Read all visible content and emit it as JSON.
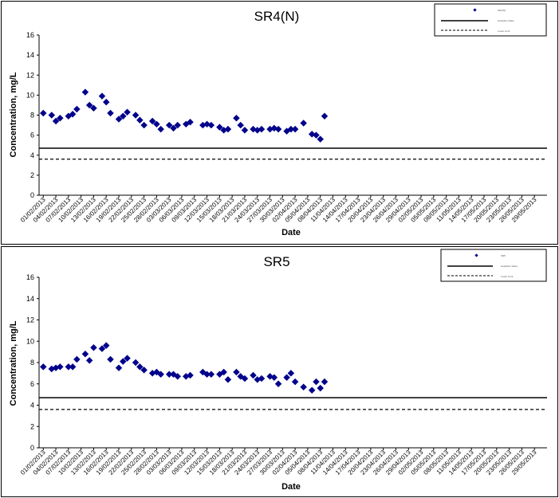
{
  "chart_data": [
    {
      "type": "scatter",
      "title": "SR4(N)",
      "xlabel": "Date",
      "ylabel": "Concentration, mg/L",
      "ylim": [
        0,
        16
      ],
      "yticks": [
        0,
        2,
        4,
        6,
        8,
        10,
        12,
        14,
        16
      ],
      "xlim": [
        "31/01/2013",
        "01/06/2013"
      ],
      "grid": false,
      "legend_position": "top-right",
      "marker_color": "#00008b",
      "tick_labels": [
        "01/02/2013",
        "04/02/2013",
        "07/02/2013",
        "10/02/2013",
        "13/02/2013",
        "16/02/2013",
        "19/02/2013",
        "22/02/2013",
        "25/02/2013",
        "28/02/2013",
        "03/03/2013",
        "06/03/2013",
        "09/03/2013",
        "12/03/2013",
        "15/03/2013",
        "18/03/2013",
        "21/03/2013",
        "24/03/2013",
        "27/03/2013",
        "30/03/2013",
        "02/04/2013",
        "05/04/2013",
        "08/04/2013",
        "11/04/2013",
        "14/04/2013",
        "17/04/2013",
        "20/04/2013",
        "23/04/2013",
        "26/04/2013",
        "29/04/2013",
        "02/05/2013",
        "05/05/2013",
        "08/05/2013",
        "11/05/2013",
        "14/05/2013",
        "17/05/2013",
        "20/05/2013",
        "23/05/2013",
        "26/05/2013",
        "29/05/2013"
      ],
      "legend": [
        "SR4(N)",
        "Guideline Value",
        "Lower Limit"
      ],
      "series": [
        {
          "name": "SR4(N)",
          "kind": "markers",
          "points": [
            [
              "01/02/2013",
              8.2
            ],
            [
              "03/02/2013",
              8.0
            ],
            [
              "04/02/2013",
              7.4
            ],
            [
              "05/02/2013",
              7.7
            ],
            [
              "07/02/2013",
              7.9
            ],
            [
              "08/02/2013",
              8.1
            ],
            [
              "09/02/2013",
              8.6
            ],
            [
              "11/02/2013",
              10.3
            ],
            [
              "12/02/2013",
              9.0
            ],
            [
              "13/02/2013",
              8.7
            ],
            [
              "15/02/2013",
              9.9
            ],
            [
              "16/02/2013",
              9.3
            ],
            [
              "17/02/2013",
              8.2
            ],
            [
              "19/02/2013",
              7.6
            ],
            [
              "20/02/2013",
              7.9
            ],
            [
              "21/02/2013",
              8.3
            ],
            [
              "23/02/2013",
              8.0
            ],
            [
              "24/02/2013",
              7.5
            ],
            [
              "25/02/2013",
              7.0
            ],
            [
              "27/02/2013",
              7.4
            ],
            [
              "28/02/2013",
              7.1
            ],
            [
              "01/03/2013",
              6.6
            ],
            [
              "03/03/2013",
              7.0
            ],
            [
              "04/03/2013",
              6.7
            ],
            [
              "05/03/2013",
              7.0
            ],
            [
              "07/03/2013",
              7.1
            ],
            [
              "08/03/2013",
              7.3
            ],
            [
              "11/03/2013",
              7.0
            ],
            [
              "12/03/2013",
              7.1
            ],
            [
              "13/03/2013",
              7.0
            ],
            [
              "15/03/2013",
              6.8
            ],
            [
              "16/03/2013",
              6.5
            ],
            [
              "17/03/2013",
              6.6
            ],
            [
              "19/03/2013",
              7.7
            ],
            [
              "20/03/2013",
              7.0
            ],
            [
              "21/03/2013",
              6.5
            ],
            [
              "23/03/2013",
              6.6
            ],
            [
              "24/03/2013",
              6.5
            ],
            [
              "25/03/2013",
              6.6
            ],
            [
              "27/03/2013",
              6.6
            ],
            [
              "28/03/2013",
              6.7
            ],
            [
              "29/03/2013",
              6.6
            ],
            [
              "31/03/2013",
              6.4
            ],
            [
              "01/04/2013",
              6.6
            ],
            [
              "02/04/2013",
              6.6
            ],
            [
              "04/04/2013",
              7.2
            ],
            [
              "06/04/2013",
              6.1
            ],
            [
              "07/04/2013",
              6.0
            ],
            [
              "08/04/2013",
              5.6
            ],
            [
              "09/04/2013",
              7.9
            ]
          ]
        },
        {
          "name": "Guideline Value",
          "kind": "solid-line",
          "value": 4.7
        },
        {
          "name": "Lower Limit",
          "kind": "dashed-line",
          "value": 3.6
        }
      ]
    },
    {
      "type": "scatter",
      "title": "SR5",
      "xlabel": "Date",
      "ylabel": "Concentration, mg/L",
      "ylim": [
        0,
        16
      ],
      "yticks": [
        0,
        2,
        4,
        6,
        8,
        10,
        12,
        14,
        16
      ],
      "xlim": [
        "31/01/2013",
        "01/06/2013"
      ],
      "grid": false,
      "legend_position": "top-right",
      "marker_color": "#00008b",
      "tick_labels": [
        "01/02/2013",
        "04/02/2013",
        "07/02/2013",
        "10/02/2013",
        "13/02/2013",
        "16/02/2013",
        "19/02/2013",
        "22/02/2013",
        "25/02/2013",
        "28/02/2013",
        "03/03/2013",
        "06/03/2013",
        "09/03/2013",
        "12/03/2013",
        "15/03/2013",
        "18/03/2013",
        "21/03/2013",
        "24/03/2013",
        "27/03/2013",
        "30/03/2013",
        "02/04/2013",
        "05/04/2013",
        "08/04/2013",
        "11/04/2013",
        "14/04/2013",
        "17/04/2013",
        "20/04/2013",
        "23/04/2013",
        "26/04/2013",
        "29/04/2013",
        "02/05/2013",
        "05/05/2013",
        "08/05/2013",
        "11/05/2013",
        "14/05/2013",
        "17/05/2013",
        "20/05/2013",
        "23/05/2013",
        "26/05/2013",
        "29/05/2013"
      ],
      "legend": [
        "SR5",
        "Guideline Value",
        "Lower Limit"
      ],
      "series": [
        {
          "name": "SR5",
          "kind": "markers",
          "points": [
            [
              "01/02/2013",
              7.6
            ],
            [
              "03/02/2013",
              7.4
            ],
            [
              "04/02/2013",
              7.5
            ],
            [
              "05/02/2013",
              7.6
            ],
            [
              "07/02/2013",
              7.6
            ],
            [
              "08/02/2013",
              7.6
            ],
            [
              "09/02/2013",
              8.3
            ],
            [
              "11/02/2013",
              8.8
            ],
            [
              "12/02/2013",
              8.2
            ],
            [
              "13/02/2013",
              9.4
            ],
            [
              "15/02/2013",
              9.3
            ],
            [
              "16/02/2013",
              9.6
            ],
            [
              "17/02/2013",
              8.3
            ],
            [
              "19/02/2013",
              7.5
            ],
            [
              "20/02/2013",
              8.1
            ],
            [
              "21/02/2013",
              8.4
            ],
            [
              "23/02/2013",
              8.0
            ],
            [
              "24/02/2013",
              7.6
            ],
            [
              "25/02/2013",
              7.3
            ],
            [
              "27/02/2013",
              7.0
            ],
            [
              "28/02/2013",
              7.1
            ],
            [
              "01/03/2013",
              6.9
            ],
            [
              "03/03/2013",
              6.9
            ],
            [
              "04/03/2013",
              6.9
            ],
            [
              "05/03/2013",
              6.7
            ],
            [
              "07/03/2013",
              6.7
            ],
            [
              "08/03/2013",
              6.8
            ],
            [
              "11/03/2013",
              7.1
            ],
            [
              "12/03/2013",
              6.9
            ],
            [
              "13/03/2013",
              6.9
            ],
            [
              "15/03/2013",
              6.9
            ],
            [
              "16/03/2013",
              7.1
            ],
            [
              "17/03/2013",
              6.4
            ],
            [
              "19/03/2013",
              7.1
            ],
            [
              "20/03/2013",
              6.7
            ],
            [
              "21/03/2013",
              6.5
            ],
            [
              "23/03/2013",
              6.8
            ],
            [
              "24/03/2013",
              6.4
            ],
            [
              "25/03/2013",
              6.5
            ],
            [
              "27/03/2013",
              6.7
            ],
            [
              "28/03/2013",
              6.6
            ],
            [
              "29/03/2013",
              6.0
            ],
            [
              "31/03/2013",
              6.6
            ],
            [
              "01/04/2013",
              7.0
            ],
            [
              "02/04/2013",
              6.2
            ],
            [
              "04/04/2013",
              5.7
            ],
            [
              "06/04/2013",
              5.4
            ],
            [
              "07/04/2013",
              6.2
            ],
            [
              "08/04/2013",
              5.6
            ],
            [
              "09/04/2013",
              6.2
            ]
          ]
        },
        {
          "name": "Guideline Value",
          "kind": "solid-line",
          "value": 4.7
        },
        {
          "name": "Lower Limit",
          "kind": "dashed-line",
          "value": 3.6
        }
      ]
    }
  ]
}
